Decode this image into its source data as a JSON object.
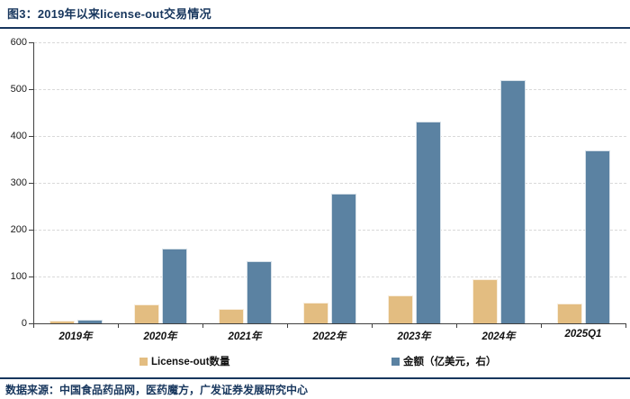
{
  "header": {
    "title": "图3：2019年以来license-out交易情况"
  },
  "colors": {
    "navy": "#17365d",
    "bar_count": "#e3bd81",
    "bar_amount": "#5b82a2",
    "grid": "#d9d9d9",
    "axis": "#404040"
  },
  "chart_data": {
    "type": "bar",
    "title": "图3：2019年以来license-out交易情况",
    "categories": [
      "2019年",
      "2020年",
      "2021年",
      "2022年",
      "2023年",
      "2024年",
      "2025Q1"
    ],
    "series": [
      {
        "name": "License-out数量",
        "color": "#e3bd81",
        "values": [
          5,
          40,
          30,
          45,
          59,
          95,
          42
        ]
      },
      {
        "name": "金额（亿美元，右）",
        "color": "#5b82a2",
        "values": [
          8,
          160,
          133,
          276,
          430,
          519,
          370
        ]
      }
    ],
    "xlabel": "",
    "ylabel": "",
    "ylim": [
      0,
      600
    ],
    "ytick_step": 100,
    "grid": "horizontal-dashed",
    "legend_position": "bottom"
  },
  "footer": {
    "source": "数据来源：中国食品药品网，医药魔方，广发证券发展研究中心"
  }
}
